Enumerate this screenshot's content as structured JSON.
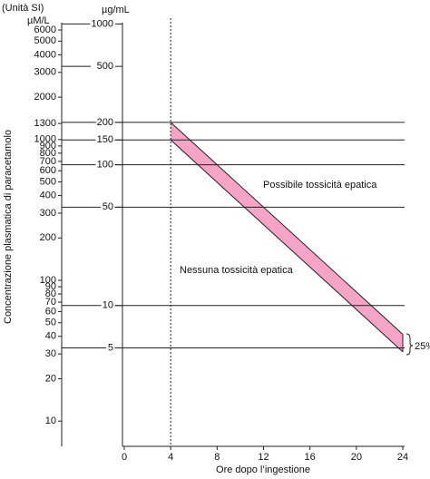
{
  "chart_data": {
    "type": "band",
    "y2_header": "(Unità SI)",
    "y2_unit": "µM/L",
    "y_unit": "µg/mL",
    "y_label": "Concentrazione plasmatica di paracetamolo",
    "x_label": "Ore dopo l’ingestione",
    "xlim": [
      0,
      24
    ],
    "xticks": [
      0,
      4,
      8,
      12,
      16,
      20,
      24
    ],
    "ylim": [
      1,
      1100
    ],
    "ylog": true,
    "yticks": [
      1000,
      500,
      200,
      150,
      100,
      50,
      10,
      5
    ],
    "y2lim": [
      6.62,
      7282
    ],
    "y2log": true,
    "y2ticks": [
      6000,
      5000,
      4000,
      3000,
      2000,
      1300,
      1000,
      900,
      800,
      700,
      600,
      500,
      400,
      300,
      200,
      100,
      90,
      80,
      70,
      60,
      50,
      40,
      30,
      20,
      10
    ],
    "band": {
      "x": [
        4,
        24
      ],
      "lower": [
        150,
        4.69
      ],
      "upper": [
        200,
        6.25
      ],
      "color": "#f5a3c7"
    },
    "annotations": [
      "Possibile tossicità epatica",
      "Nessuna tossicità epatica",
      "25%"
    ]
  }
}
